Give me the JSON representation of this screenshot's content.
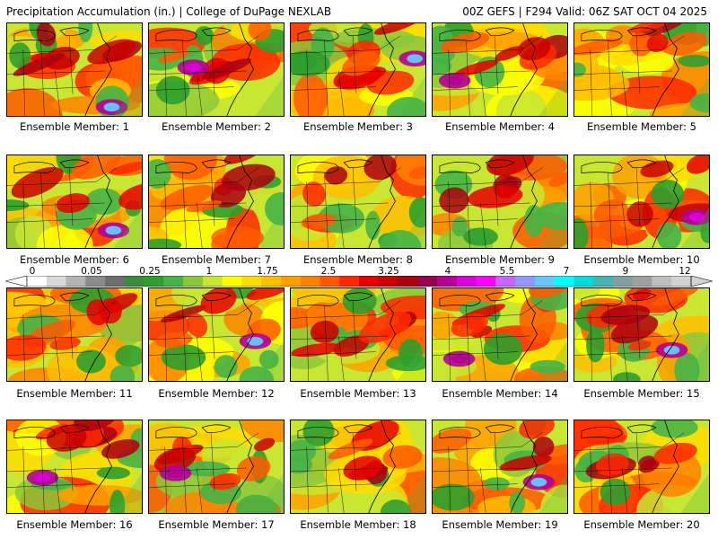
{
  "header": {
    "title_left": "Precipitation Accumulation (in.) | College of DuPage NEXLAB",
    "title_right": "00Z GEFS | F294 Valid: 06Z SAT OCT 04 2025"
  },
  "members": [
    {
      "label": "Ensemble Member: 1",
      "pattern": 1
    },
    {
      "label": "Ensemble Member: 2",
      "pattern": 2
    },
    {
      "label": "Ensemble Member: 3",
      "pattern": 3
    },
    {
      "label": "Ensemble Member: 4",
      "pattern": 4
    },
    {
      "label": "Ensemble Member: 5",
      "pattern": 5
    },
    {
      "label": "Ensemble Member: 6",
      "pattern": 6
    },
    {
      "label": "Ensemble Member: 7",
      "pattern": 7
    },
    {
      "label": "Ensemble Member: 8",
      "pattern": 8
    },
    {
      "label": "Ensemble Member: 9",
      "pattern": 9
    },
    {
      "label": "Ensemble Member: 10",
      "pattern": 10
    },
    {
      "label": "Ensemble Member: 11",
      "pattern": 11
    },
    {
      "label": "Ensemble Member: 12",
      "pattern": 12
    },
    {
      "label": "Ensemble Member: 13",
      "pattern": 13
    },
    {
      "label": "Ensemble Member: 14",
      "pattern": 14
    },
    {
      "label": "Ensemble Member: 15",
      "pattern": 15
    },
    {
      "label": "Ensemble Member: 16",
      "pattern": 16
    },
    {
      "label": "Ensemble Member: 17",
      "pattern": 17
    },
    {
      "label": "Ensemble Member: 18",
      "pattern": 18
    },
    {
      "label": "Ensemble Member: 19",
      "pattern": 19
    },
    {
      "label": "Ensemble Member: 20",
      "pattern": 20
    }
  ],
  "colorbar": {
    "tick_labels": [
      "0",
      "0.05",
      "0.25",
      "1",
      "1.75",
      "2.5",
      "3.25",
      "4",
      "5.5",
      "7",
      "9",
      "12"
    ],
    "colors": [
      "#ffffff",
      "#d9d9d9",
      "#b4b4b4",
      "#8c8c8c",
      "#6e6e6e",
      "#3c8c3c",
      "#2e9e2e",
      "#46b446",
      "#8cc83c",
      "#c8e632",
      "#ffff00",
      "#ffdc00",
      "#ffbe00",
      "#ffa000",
      "#ff8200",
      "#ff5a00",
      "#ff2800",
      "#e60000",
      "#c80000",
      "#aa0010",
      "#960050",
      "#b40096",
      "#dc00dc",
      "#ff00ff",
      "#c864ff",
      "#9696ff",
      "#64c8ff",
      "#00ffff",
      "#00dcdc",
      "#46b4b4",
      "#82a0a0",
      "#a0a0a0",
      "#bebebe",
      "#d2d2d2"
    ]
  }
}
